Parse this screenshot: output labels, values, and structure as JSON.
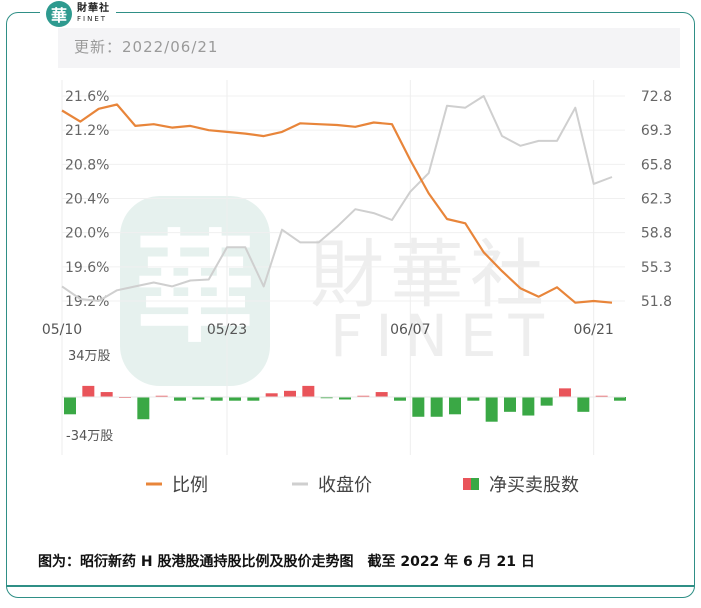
{
  "logo": {
    "cn": "財華社",
    "en": "FINET",
    "badge_glyph": "華"
  },
  "watermark": {
    "glyph": "華",
    "cn": "財華社",
    "en": "FINET"
  },
  "update_label": "更新：2022/06/21",
  "caption": "图为：昭衍新药 H 股港股通持股比例及股价走势图　截至 2022 年 6 月 21 日",
  "colors": {
    "ratio": "#e8853a",
    "price": "#cfcfcf",
    "buy": "#e9545a",
    "sell": "#3aa845",
    "frame": "#2f8f86"
  },
  "chart_data": {
    "type": "line",
    "x_ticks": [
      "05/10",
      "05/23",
      "06/07",
      "06/21"
    ],
    "x_tick_index": [
      0,
      9,
      19,
      29
    ],
    "y_left_ticks": [
      "21.6%",
      "21.2%",
      "20.8%",
      "20.4%",
      "20.0%",
      "19.6%",
      "19.2%"
    ],
    "y_left_range": [
      19.2,
      21.6
    ],
    "y_right_ticks": [
      "72.8",
      "69.3",
      "65.8",
      "62.3",
      "58.8",
      "55.3",
      "51.8"
    ],
    "y_right_range": [
      51.8,
      72.8
    ],
    "bar_ticks": [
      "34万股",
      "-34万股"
    ],
    "bar_range": [
      -34,
      34
    ],
    "legend": [
      {
        "label": "比例",
        "kind": "line",
        "color": "#e8853a"
      },
      {
        "label": "收盘价",
        "kind": "line",
        "color": "#cfcfcf"
      },
      {
        "label": "净买卖股数",
        "kind": "bars",
        "color": "#e9545a",
        "color2": "#3aa845"
      }
    ],
    "series": [
      {
        "name": "比例",
        "axis": "left",
        "values": [
          21.43,
          21.3,
          21.45,
          21.5,
          21.25,
          21.27,
          21.23,
          21.25,
          21.2,
          21.18,
          21.16,
          21.13,
          21.18,
          21.28,
          21.27,
          21.26,
          21.24,
          21.29,
          21.27,
          20.85,
          20.46,
          20.16,
          20.11,
          19.77,
          19.55,
          19.35,
          19.25,
          19.36,
          19.18,
          19.2,
          19.18
        ]
      },
      {
        "name": "收盘价",
        "axis": "right",
        "values": [
          53.3,
          52.0,
          51.8,
          52.9,
          53.3,
          53.7,
          53.3,
          53.9,
          54.0,
          57.3,
          57.3,
          53.3,
          59.1,
          57.8,
          57.8,
          59.4,
          61.2,
          60.8,
          60.1,
          63.0,
          64.9,
          71.8,
          71.6,
          72.8,
          68.7,
          67.7,
          68.2,
          68.2,
          71.6,
          63.8,
          64.5
        ]
      },
      {
        "name": "净买卖股数",
        "axis": "bar",
        "values": [
          -14,
          9,
          4,
          0,
          -18,
          1,
          -3,
          -2,
          -3,
          -3,
          -3,
          3,
          5,
          9,
          -1,
          -2,
          1,
          4,
          -3,
          -16,
          -16,
          -14,
          -3,
          -20,
          -12,
          -15,
          -7,
          7,
          -12,
          1,
          -3
        ]
      }
    ]
  }
}
